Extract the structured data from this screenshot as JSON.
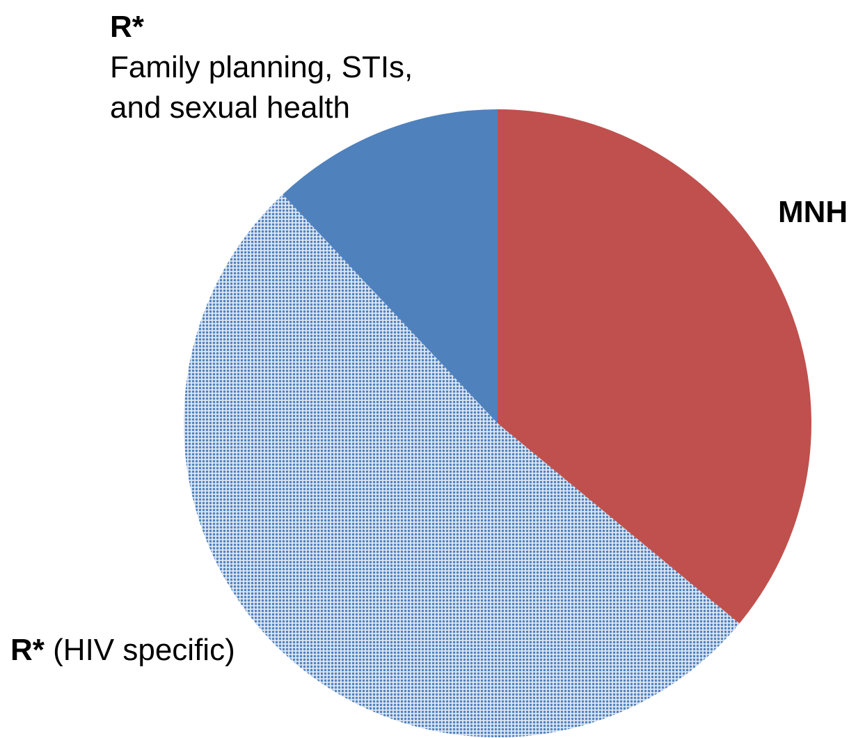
{
  "chart_data": {
    "type": "pie",
    "categories": [
      "MNH",
      "R* (HIV specific)",
      "R* Family planning, STIs, and sexual health"
    ],
    "values": [
      36,
      52,
      12
    ],
    "colors": [
      "#c0504d",
      "#4f81bd",
      "#4f81bd"
    ],
    "patterned": [
      false,
      true,
      false
    ]
  }
}
